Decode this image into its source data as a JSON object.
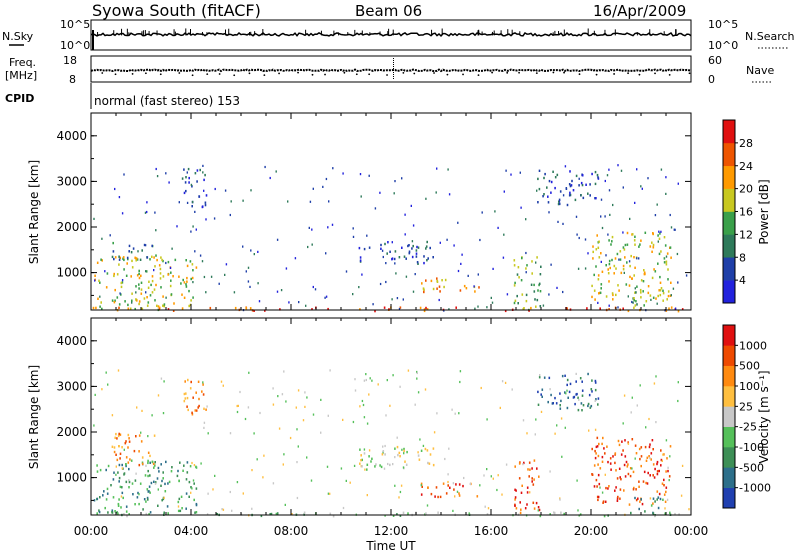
{
  "header": {
    "station": "Syowa South (fitACF)",
    "beam": "Beam 06",
    "date": "16/Apr/2009"
  },
  "info_panels": {
    "nsky_label": "N.Sky",
    "freq_label_1": "Freq.",
    "freq_label_2": "[MHz]",
    "cpid_label": "CPID",
    "nsearch_label": "N.Search",
    "nave_label": "Nave",
    "noise_ticks_left": [
      "10^5",
      "10^0"
    ],
    "noise_ticks_right": [
      "10^5",
      "10^0"
    ],
    "freq_ticks": [
      "18",
      "8"
    ],
    "nave_ticks": [
      "60",
      "0"
    ],
    "cpid_text": "normal (fast stereo) 153",
    "noise_level_fraction": 0.42,
    "freq_level_mhz": 12.5,
    "nave_level": 22
  },
  "chart_data": [
    {
      "type": "heatmap",
      "panel": "power",
      "ylabel": "Slant Range [km]",
      "xlabel": "",
      "yticks": [
        "1000",
        "2000",
        "3000",
        "4000"
      ],
      "xticks": [
        "00:00",
        "04:00",
        "08:00",
        "12:00",
        "16:00",
        "20:00",
        "00:00"
      ],
      "xlim_hours": [
        0,
        24
      ],
      "ylim_km": [
        180,
        4500
      ],
      "grid": false,
      "colorbar": {
        "label": "Power [dB]",
        "ticks": [
          "28",
          "24",
          "20",
          "16",
          "12",
          "8",
          "4"
        ],
        "colors": [
          "#2222dd",
          "#1f3fa8",
          "#2e7a5a",
          "#3aa04a",
          "#c8c820",
          "#ff9a00",
          "#ee5500",
          "#e01010"
        ]
      },
      "echo_regions": [
        {
          "t0": 0.1,
          "t1": 4.2,
          "r0": 200,
          "r1": 1400,
          "level": 4
        },
        {
          "t0": 0.8,
          "t1": 2.6,
          "r0": 1300,
          "r1": 1700,
          "level": 2
        },
        {
          "t0": 3.6,
          "t1": 4.6,
          "r0": 2400,
          "r1": 3300,
          "level": 1
        },
        {
          "t0": 10.7,
          "t1": 13.7,
          "r0": 1200,
          "r1": 1700,
          "level": 1
        },
        {
          "t0": 13.0,
          "t1": 15.6,
          "r0": 600,
          "r1": 900,
          "level": 5
        },
        {
          "t0": 16.9,
          "t1": 18.0,
          "r0": 200,
          "r1": 1400,
          "level": 3
        },
        {
          "t0": 17.8,
          "t1": 20.3,
          "r0": 2500,
          "r1": 3300,
          "level": 1
        },
        {
          "t0": 20.0,
          "t1": 23.2,
          "r0": 400,
          "r1": 1900,
          "level": 4
        },
        {
          "t0": 21.6,
          "t1": 22.9,
          "r0": 250,
          "r1": 600,
          "level": 3
        },
        {
          "t0": 0,
          "t1": 24,
          "r0": 180,
          "r1": 260,
          "level": 6
        }
      ]
    },
    {
      "type": "heatmap",
      "panel": "velocity",
      "ylabel": "Slant Range [km]",
      "xlabel": "Time UT",
      "yticks": [
        "1000",
        "2000",
        "3000",
        "4000"
      ],
      "xticks": [
        "00:00",
        "04:00",
        "08:00",
        "12:00",
        "16:00",
        "20:00",
        "00:00"
      ],
      "xlim_hours": [
        0,
        24
      ],
      "ylim_km": [
        180,
        4500
      ],
      "grid": false,
      "colorbar": {
        "label": "Velocity [m s⁻¹]",
        "ticks": [
          "1000",
          "500",
          "100",
          "25",
          "-25",
          "-100",
          "-500",
          "-1000"
        ],
        "colors": [
          "#2040b0",
          "#2d6f8a",
          "#3d8f56",
          "#55c05a",
          "#c8c8c8",
          "#ffbf40",
          "#ff8a10",
          "#ee4a00",
          "#e01010"
        ]
      },
      "echo_regions": [
        {
          "t0": 0.1,
          "t1": 4.2,
          "r0": 200,
          "r1": 1400,
          "level": 2
        },
        {
          "t0": 0.8,
          "t1": 2.6,
          "r0": 1300,
          "r1": 2000,
          "level": 6
        },
        {
          "t0": 3.6,
          "t1": 4.6,
          "r0": 2400,
          "r1": 3300,
          "level": 6
        },
        {
          "t0": 10.7,
          "t1": 13.7,
          "r0": 1200,
          "r1": 1700,
          "level": 4
        },
        {
          "t0": 13.0,
          "t1": 15.6,
          "r0": 600,
          "r1": 900,
          "level": 7
        },
        {
          "t0": 16.9,
          "t1": 18.0,
          "r0": 200,
          "r1": 1400,
          "level": 7
        },
        {
          "t0": 17.8,
          "t1": 20.3,
          "r0": 2500,
          "r1": 3300,
          "level": 1
        },
        {
          "t0": 20.0,
          "t1": 23.2,
          "r0": 400,
          "r1": 1900,
          "level": 7
        },
        {
          "t0": 21.6,
          "t1": 22.9,
          "r0": 250,
          "r1": 600,
          "level": 2
        },
        {
          "t0": 0,
          "t1": 24,
          "r0": 180,
          "r1": 260,
          "level": 3
        }
      ]
    }
  ]
}
